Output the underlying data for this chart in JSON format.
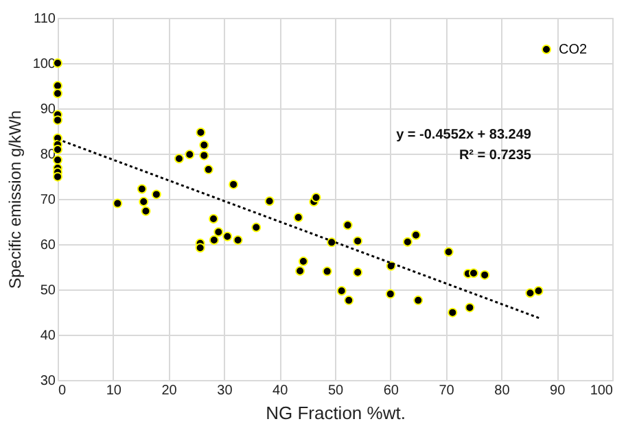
{
  "chart_data": {
    "type": "scatter",
    "xlabel": "NG Fraction    %wt.",
    "ylabel": "Specific emission    g/kWh",
    "xlim": [
      0,
      100
    ],
    "xticks": [
      0,
      10,
      20,
      30,
      40,
      50,
      60,
      70,
      80,
      90,
      100
    ],
    "ylim": [
      30,
      110
    ],
    "yticks": [
      30,
      40,
      50,
      60,
      70,
      80,
      90,
      100,
      110
    ],
    "grid": true,
    "legend": "top right",
    "marker": "circle",
    "annotations": [
      "y = -0.4552x + 83.249",
      "R² = 0.7235"
    ],
    "series": [
      {
        "name": "CO2",
        "color": "#000000",
        "x": [
          0,
          0,
          0,
          0,
          0,
          0,
          0,
          0,
          0,
          0,
          0,
          0,
          10.8,
          15.2,
          15.5,
          15.9,
          17.8,
          21.9,
          23.8,
          25.8,
          26.4,
          26.4,
          27.2,
          31.7,
          25.7,
          25.7,
          28.1,
          29.0,
          28.2,
          30.6,
          32.5,
          35.8,
          38.2,
          43.4,
          46.2,
          46.6,
          52.3,
          49.4,
          54.1,
          44.3,
          43.7,
          48.6,
          54.1,
          51.2,
          52.5,
          60.1,
          60.0,
          63.1,
          64.6,
          65.0,
          70.5,
          74.0,
          75.0,
          77.0,
          71.2,
          74.3,
          85.2,
          86.7
        ],
        "values": [
          100,
          95.0,
          93.3,
          88.6,
          87.4,
          83.4,
          82.0,
          80.9,
          78.6,
          76.8,
          75.9,
          74.9,
          69.0,
          72.2,
          69.4,
          67.3,
          71.0,
          78.9,
          79.8,
          84.7,
          81.9,
          79.6,
          76.5,
          73.2,
          60.2,
          59.2,
          65.6,
          62.7,
          60.9,
          61.7,
          60.9,
          63.7,
          69.5,
          65.9,
          69.4,
          70.3,
          64.2,
          60.4,
          60.7,
          56.2,
          54.1,
          54.0,
          53.8,
          49.7,
          47.6,
          55.2,
          49.0,
          60.5,
          62.0,
          47.6,
          58.3,
          53.5,
          53.6,
          53.2,
          44.9,
          46.0,
          49.2,
          49.7
        ]
      },
      {
        "type": "line",
        "color": "#000000",
        "line_style": "dotted",
        "marker": "none",
        "x": [
          0,
          87
        ],
        "values": [
          83.2,
          43.6
        ]
      }
    ]
  }
}
